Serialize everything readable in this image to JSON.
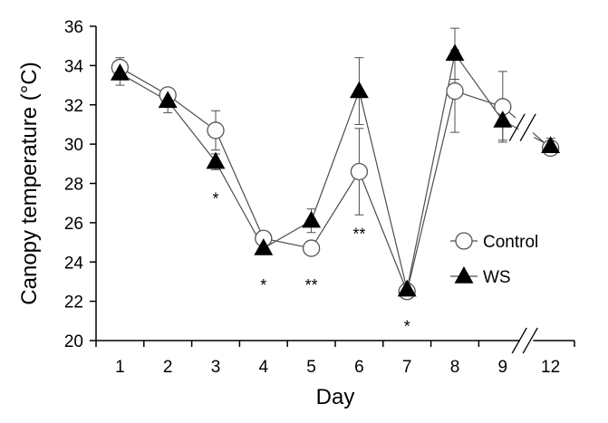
{
  "chart_data": {
    "type": "line",
    "xlabel": "Day",
    "ylabel": "Canopy temperature (°C)",
    "categories": [
      "1",
      "2",
      "3",
      "4",
      "5",
      "6",
      "7",
      "8",
      "9",
      "12"
    ],
    "ylim": [
      20,
      36
    ],
    "yticks": [
      "20",
      "22",
      "24",
      "26",
      "28",
      "30",
      "32",
      "34",
      "36"
    ],
    "grid": false,
    "legend_position": "right",
    "axis_break": "between 9 and 12",
    "series": [
      {
        "name": "Control",
        "marker": "open-circle",
        "values": [
          33.9,
          32.5,
          30.7,
          25.2,
          24.7,
          28.6,
          22.5,
          32.7,
          31.9,
          29.8
        ],
        "error": [
          0.5,
          0.3,
          1.0,
          0.3,
          0.3,
          2.2,
          0.3,
          2.1,
          1.8,
          0.3
        ]
      },
      {
        "name": "WS",
        "marker": "filled-triangle",
        "values": [
          33.6,
          32.2,
          29.1,
          24.7,
          26.1,
          32.7,
          22.6,
          34.6,
          31.2,
          29.9
        ],
        "error": [
          0.6,
          0.6,
          0.4,
          0.3,
          0.6,
          1.7,
          0.3,
          1.3,
          1.0,
          0.4
        ]
      }
    ],
    "annotations": [
      {
        "category": "3",
        "text": "*",
        "y": 27.4
      },
      {
        "category": "4",
        "text": "*",
        "y": 23.0
      },
      {
        "category": "5",
        "text": "**",
        "y": 23.0
      },
      {
        "category": "6",
        "text": "**",
        "y": 25.6
      },
      {
        "category": "7",
        "text": "*",
        "y": 20.9
      }
    ]
  },
  "colors": {
    "axis": "#000000",
    "line": "#4d4d4d",
    "marker_fill_control": "#ffffff",
    "marker_fill_ws": "#000000"
  }
}
